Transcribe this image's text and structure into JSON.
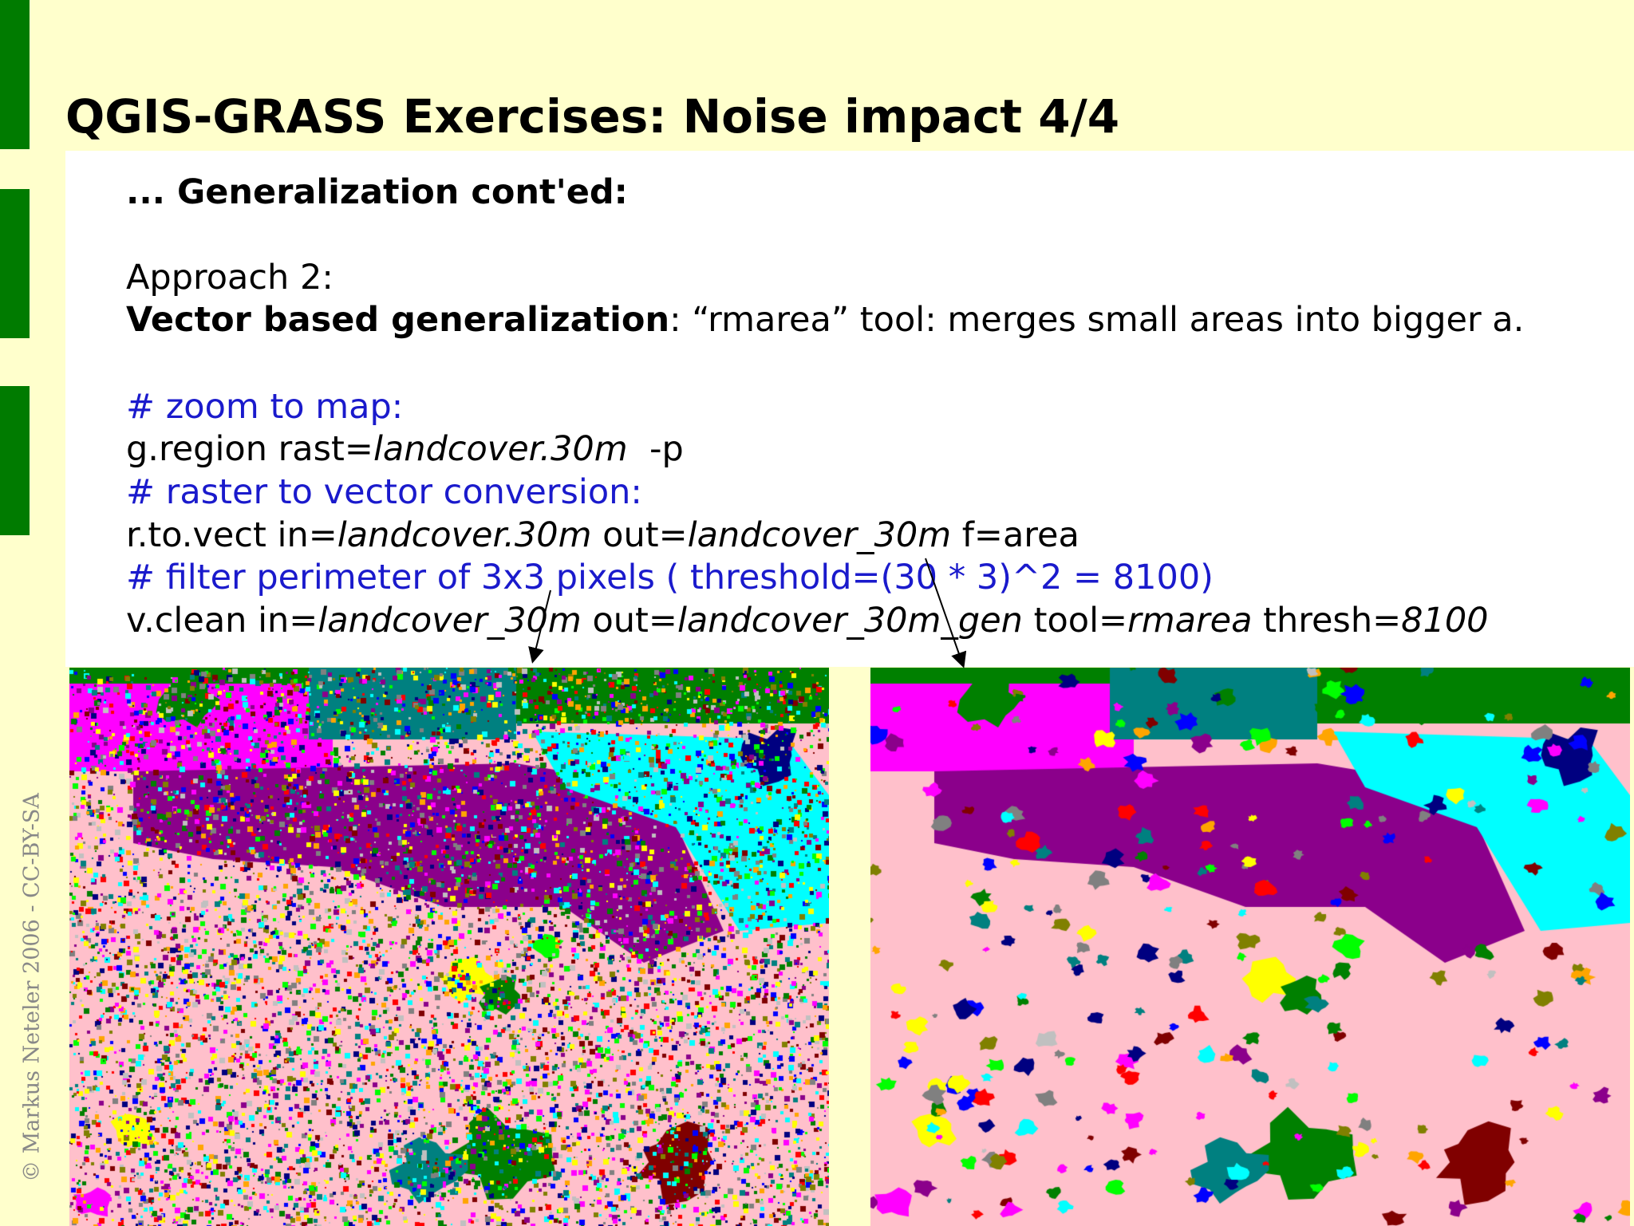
{
  "slide": {
    "title": "QGIS-GRASS Exercises: Noise impact 4/4",
    "copyright": "© Markus Neteler 2006 - CC-BY-SA"
  },
  "content": {
    "heading": "... Generalization cont'ed:",
    "approach": "Approach 2:",
    "approach_bold": "Vector based generalization",
    "approach_rest": ": “rmarea” tool: merges small areas into bigger a.",
    "comment1": "# zoom to map:",
    "cmd1": {
      "p1": "g.region rast=",
      "p2": "landcover.30m",
      "p3": "  -p"
    },
    "comment2": "# raster to vector conversion:",
    "cmd2": {
      "p1": "r.to.vect in=",
      "p2": "landcover.30m",
      "p3": " out=",
      "p4": "landcover_30m",
      "p5": " f=area"
    },
    "comment3": "# filter perimeter of 3x3 pixels ( threshold=(30 * 3)^2 = 8100)",
    "cmd3": {
      "p1": "v.clean in=",
      "p2": "landcover_30m",
      "p3": " out=",
      "p4": "landcover_30m_gen",
      "p5": " tool=",
      "p6": "rmarea",
      "p7": " thresh=",
      "p8": "8100"
    }
  },
  "images": {
    "left_map": "landcover raster map before generalization (noisy)",
    "right_map": "landcover vector map after rmarea generalization (smoothed)"
  },
  "colors": {
    "background": "#ffffcc",
    "side_bars": "#007b00",
    "comment_text": "#1a1acc",
    "landcover_palette": [
      "#ffc0cb",
      "#8b008b",
      "#008000",
      "#ff00ff",
      "#00ffff",
      "#008080",
      "#808080",
      "#c0c0c0",
      "#ff0000",
      "#800000",
      "#ffff00",
      "#0000ff",
      "#000080",
      "#ffa500",
      "#808000",
      "#00ff00"
    ]
  }
}
